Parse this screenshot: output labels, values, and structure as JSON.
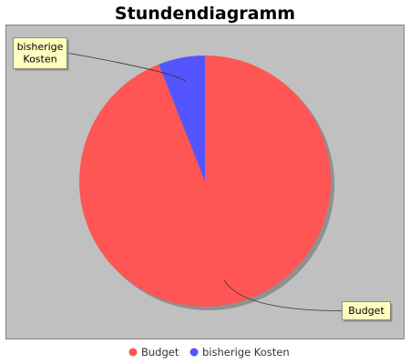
{
  "chart_data": {
    "type": "pie",
    "title": "Stundendiagramm",
    "slices": [
      {
        "label": "Budget",
        "value": 94,
        "color": "#ff5555"
      },
      {
        "label": "bisherige Kosten",
        "value": 6,
        "color": "#5555ff"
      }
    ],
    "slice_labels": [
      {
        "lines": [
          "Budget"
        ]
      },
      {
        "lines": [
          "bisherige",
          "Kosten"
        ]
      }
    ],
    "legend": {
      "placement": "bottom",
      "items": [
        "Budget",
        "bisherige Kosten"
      ]
    },
    "plot_background": "#c0c0c0",
    "label_box_color": "#ffffc0"
  }
}
